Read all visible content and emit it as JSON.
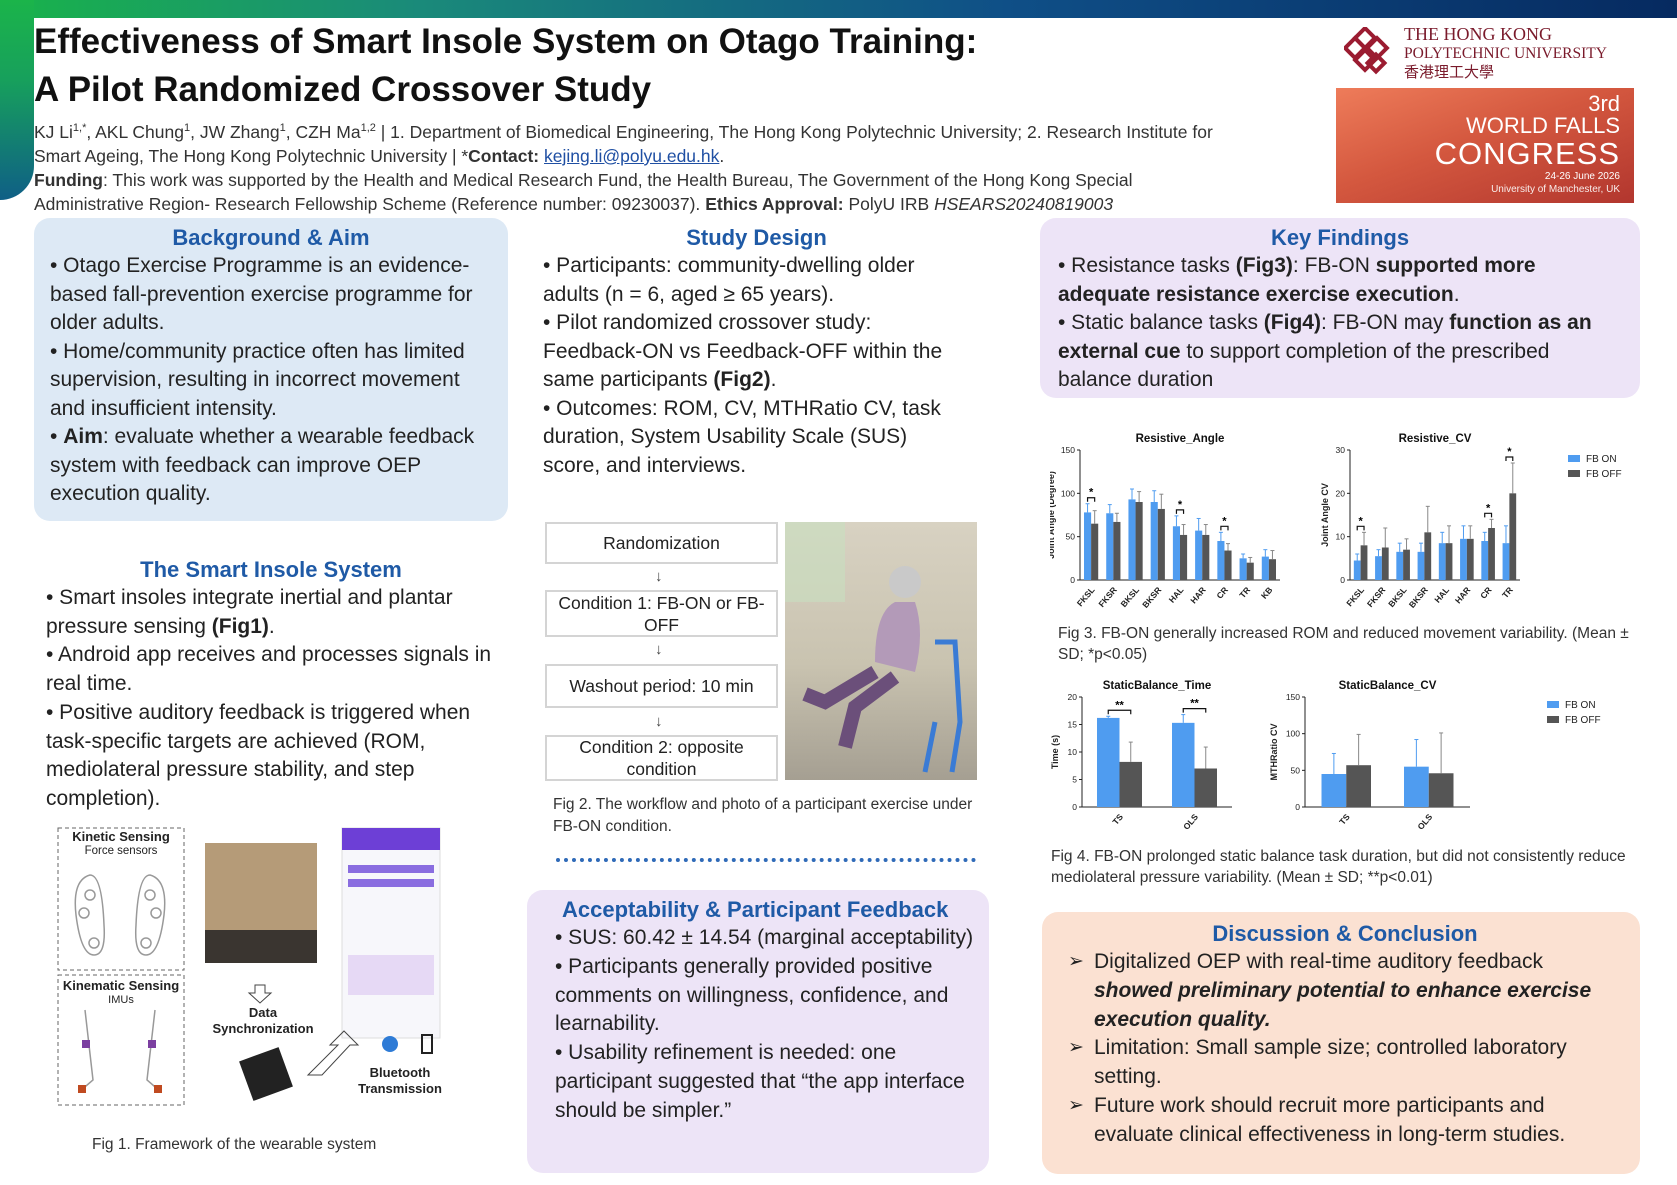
{
  "header": {
    "title_line1": "Effectiveness of Smart Insole System on Otago Training:",
    "title_line2": "A Pilot Randomized Crossover Study",
    "authors_line1": "KJ Li1,*, AKL Chung1, JW Zhang1, CZH Ma1,2 | 1. Department of Biomedical Engineering, The Hong Kong Polytechnic University; 2. Research Institute for",
    "authors_line2_pre": "Smart Ageing, The Hong Kong Polytechnic University | *",
    "contact_label": "Contact:",
    "contact_email": "kejing.li@polyu.edu.hk",
    "funding_label": "Funding",
    "funding_text": ": This work was supported by the Health and Medical Research Fund, the Health Bureau, The Government of the Hong Kong Special",
    "funding_text2": "Administrative Region- Research Fellowship Scheme (Reference number: 09230037).",
    "ethics_label": "Ethics Approval:",
    "ethics_text": "PolyU IRB",
    "ethics_id": "HSEARS20240819003"
  },
  "logos": {
    "polyu_line1": "THE HONG KONG",
    "polyu_line2": "POLYTECHNIC UNIVERSITY",
    "polyu_line3": "香港理工大學",
    "wfc_num": "3rd",
    "wfc_line1": "WORLD FALLS",
    "wfc_line2": "CONGRESS",
    "wfc_date": "24-26 June 2026",
    "wfc_place": "University of Manchester, UK"
  },
  "background": {
    "title": "Background & Aim",
    "b1": "• Otago Exercise Programme is an evidence-based fall-prevention exercise programme for older adults.",
    "b2": "• Home/community practice often has limited supervision, resulting in incorrect movement and insufficient intensity.",
    "b3_label": "Aim",
    "b3_text": ": evaluate whether a wearable feedback system with feedback can improve OEP execution quality."
  },
  "smart_insole": {
    "title": "The Smart Insole System",
    "b1_pre": "• Smart insoles integrate inertial and plantar pressure sensing ",
    "b1_fig": "(Fig1)",
    "b2": "• Android app receives and processes signals in real time.",
    "b3": "• Positive auditory feedback is triggered when task-specific targets are achieved (ROM, mediolateral pressure stability, and step completion).",
    "kinetic": "Kinetic Sensing",
    "force": "Force sensors",
    "kinematic": "Kinematic Sensing",
    "imus": "IMUs",
    "data_sync": "Data Synchronization",
    "bluetooth": "Bluetooth Transmission",
    "fig1_caption": "Fig 1. Framework of the wearable system"
  },
  "study_design": {
    "title": "Study Design",
    "b1": "• Participants: community-dwelling older adults (n = 6, aged ≥ 65 years).",
    "b2_pre": "• Pilot randomized crossover study: Feedback-ON vs Feedback-OFF within the same participants ",
    "b2_fig": "(Fig2)",
    "b3": "• Outcomes: ROM, CV, MTHRatio CV, task duration, System Usability Scale (SUS) score, and interviews.",
    "flow": [
      "Randomization",
      "Condition 1: FB-ON or FB-OFF",
      "Washout period: 10 min",
      "Condition 2: opposite condition"
    ],
    "fig2_caption": "Fig 2. The workflow and photo of a participant exercise under FB-ON condition."
  },
  "acceptability": {
    "title": "Acceptability & Participant Feedback",
    "b1": "• SUS: 60.42 ± 14.54 (marginal acceptability)",
    "b2": "• Participants generally provided positive comments on willingness, confidence, and learnability.",
    "b3": "• Usability refinement is needed: one participant suggested that “the app interface should be simpler.”"
  },
  "key_findings": {
    "title": "Key Findings",
    "b1_pre": "• Resistance tasks ",
    "b1_fig": "(Fig3)",
    "b1_mid": ": FB-ON ",
    "b1_bold": "supported more adequate resistance exercise execution",
    "b1_end": ".",
    "b2_pre": "• Static balance tasks ",
    "b2_fig": "(Fig4)",
    "b2_mid": ": FB-ON may ",
    "b2_bold": "function as an external cue",
    "b2_end": " to support completion of the prescribed balance duration",
    "fig3_caption": "Fig 3. FB-ON generally increased ROM and reduced movement variability. (Mean ± SD; *p<0.05)",
    "fig4_caption": "Fig 4. FB-ON prolonged static balance task duration, but did not consistently reduce mediolateral pressure variability. (Mean ± SD; **p<0.01)"
  },
  "discussion": {
    "title": "Discussion & Conclusion",
    "b1_pre": "Digitalized OEP with real-time auditory feedback ",
    "b1_bold": "showed preliminary potential to enhance exercise execution quality.",
    "b2": "Limitation: Small sample size; controlled laboratory setting.",
    "b3": "Future work should recruit more participants and evaluate clinical effectiveness in long-term studies."
  },
  "colors": {
    "fb_on": "#4f9cf0",
    "fb_off": "#555555",
    "title_blue": "#1f5aa6",
    "bg_blue": "#dde9f5",
    "bg_purple": "#ede4f7",
    "bg_peach": "#fbe1d2"
  },
  "chart_data": [
    {
      "type": "bar",
      "title": "Resistive_Angle",
      "ylabel": "Joint Angle (Degree)",
      "ylim": [
        0,
        150
      ],
      "yticks": [
        0,
        50,
        100,
        150
      ],
      "categories": [
        "FKSL",
        "FKSR",
        "BKSL",
        "BKSR",
        "HAL",
        "HAR",
        "CR",
        "TR",
        "KB"
      ],
      "series": [
        {
          "name": "FB ON",
          "values": [
            78,
            77,
            93,
            90,
            62,
            57,
            45,
            25,
            27
          ],
          "err": [
            10,
            10,
            12,
            13,
            12,
            14,
            10,
            5,
            8
          ]
        },
        {
          "name": "FB OFF",
          "values": [
            65,
            67,
            90,
            82,
            52,
            52,
            34,
            20,
            24
          ],
          "err": [
            15,
            10,
            12,
            17,
            12,
            12,
            8,
            6,
            10
          ]
        }
      ],
      "significance": [
        {
          "category": "FKSL",
          "label": "*"
        },
        {
          "category": "HAL",
          "label": "*"
        },
        {
          "category": "CR",
          "label": "*"
        }
      ]
    },
    {
      "type": "bar",
      "title": "Resistive_CV",
      "ylabel": "Joint Angle CV",
      "ylim": [
        0,
        30
      ],
      "yticks": [
        0,
        10,
        20,
        30
      ],
      "categories": [
        "FKSL",
        "FKSR",
        "BKSL",
        "BKSR",
        "HAL",
        "HAR",
        "CR",
        "TR"
      ],
      "series": [
        {
          "name": "FB ON",
          "values": [
            4.5,
            5.5,
            6.5,
            6.5,
            8.5,
            9.5,
            9,
            8.5
          ],
          "err": [
            1.5,
            1.5,
            2,
            2,
            2.5,
            3,
            2,
            4
          ]
        },
        {
          "name": "FB OFF",
          "values": [
            8,
            7.5,
            7,
            11,
            8.5,
            9.5,
            12,
            20
          ],
          "err": [
            3,
            4.5,
            2.5,
            6,
            4,
            3,
            2,
            7
          ]
        }
      ],
      "significance": [
        {
          "category": "FKSL",
          "label": "*"
        },
        {
          "category": "CR",
          "label": "*"
        },
        {
          "category": "TR",
          "label": "*"
        }
      ]
    },
    {
      "type": "bar",
      "title": "StaticBalance_Time",
      "ylabel": "Time (s)",
      "ylim": [
        0,
        20
      ],
      "yticks": [
        0,
        5,
        10,
        15,
        20
      ],
      "categories": [
        "TS",
        "OLS"
      ],
      "series": [
        {
          "name": "FB ON",
          "values": [
            16.2,
            15.3
          ],
          "err": [
            0.3,
            1.5
          ]
        },
        {
          "name": "FB OFF",
          "values": [
            8.2,
            7.0
          ],
          "err": [
            3.6,
            3.9
          ]
        }
      ],
      "significance": [
        {
          "category": "TS",
          "label": "**"
        },
        {
          "category": "OLS",
          "label": "**"
        }
      ]
    },
    {
      "type": "bar",
      "title": "StaticBalance_CV",
      "ylabel": "MTHRatio CV",
      "ylim": [
        0,
        150
      ],
      "yticks": [
        0,
        50,
        100,
        150
      ],
      "categories": [
        "TS",
        "OLS"
      ],
      "series": [
        {
          "name": "FB ON",
          "values": [
            45,
            55
          ],
          "err": [
            28,
            37
          ]
        },
        {
          "name": "FB OFF",
          "values": [
            57,
            46
          ],
          "err": [
            42,
            55
          ]
        }
      ]
    }
  ]
}
